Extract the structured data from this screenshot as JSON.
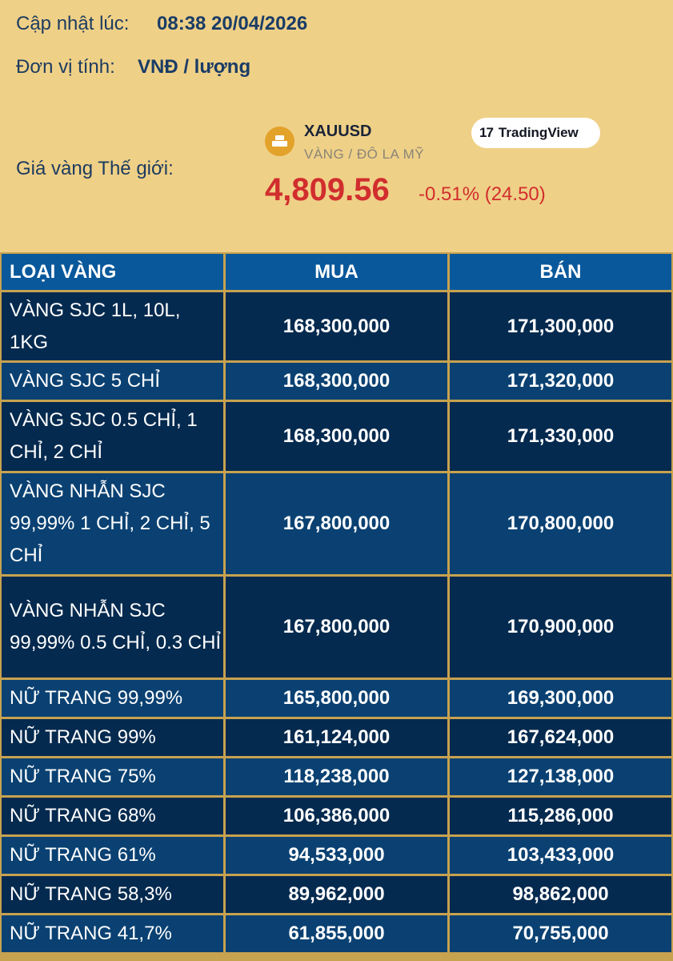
{
  "header": {
    "update_label": "Cập nhật lúc:",
    "update_value": "08:38 20/04/2026",
    "unit_label": "Đơn vị tính:",
    "unit_value": "VNĐ / lượng",
    "world_label": "Giá vàng Thế giới:"
  },
  "ticker": {
    "icon": "gold-bar-icon",
    "symbol": "XAUUSD",
    "description": "VÀNG / ĐÔ LA MỸ",
    "source_logo": "17",
    "source_name": "TradingView",
    "price": "4,809.56",
    "change": "-0.51% (24.50)"
  },
  "colors": {
    "background": "#efd087",
    "header_cell": "#08589b",
    "row_dark": "#052a4f",
    "row_mid": "#0a4172",
    "grid": "#c7a24f",
    "negative": "#d12e2e"
  },
  "table": {
    "columns": [
      "LOẠI VÀNG",
      "MUA",
      "BÁN"
    ],
    "rows": [
      {
        "type": "VÀNG SJC 1L, 10L, 1KG",
        "buy": "168,300,000",
        "sell": "171,300,000"
      },
      {
        "type": "VÀNG SJC 5 CHỈ",
        "buy": "168,300,000",
        "sell": "171,320,000"
      },
      {
        "type": "VÀNG SJC 0.5 CHỈ, 1 CHỈ, 2 CHỈ",
        "buy": "168,300,000",
        "sell": "171,330,000"
      },
      {
        "type": "VÀNG NHẪN SJC 99,99% 1 CHỈ, 2 CHỈ, 5 CHỈ",
        "buy": "167,800,000",
        "sell": "170,800,000"
      },
      {
        "type": "VÀNG NHẪN SJC 99,99% 0.5 CHỈ, 0.3 CHỈ",
        "buy": "167,800,000",
        "sell": "170,900,000"
      },
      {
        "type": "NỮ TRANG 99,99%",
        "buy": "165,800,000",
        "sell": "169,300,000"
      },
      {
        "type": "NỮ TRANG 99%",
        "buy": "161,124,000",
        "sell": "167,624,000"
      },
      {
        "type": "NỮ TRANG 75%",
        "buy": "118,238,000",
        "sell": "127,138,000"
      },
      {
        "type": "NỮ TRANG 68%",
        "buy": "106,386,000",
        "sell": "115,286,000"
      },
      {
        "type": "NỮ TRANG 61%",
        "buy": "94,533,000",
        "sell": "103,433,000"
      },
      {
        "type": "NỮ TRANG 58,3%",
        "buy": "89,962,000",
        "sell": "98,862,000"
      },
      {
        "type": "NỮ TRANG 41,7%",
        "buy": "61,855,000",
        "sell": "70,755,000"
      }
    ]
  }
}
